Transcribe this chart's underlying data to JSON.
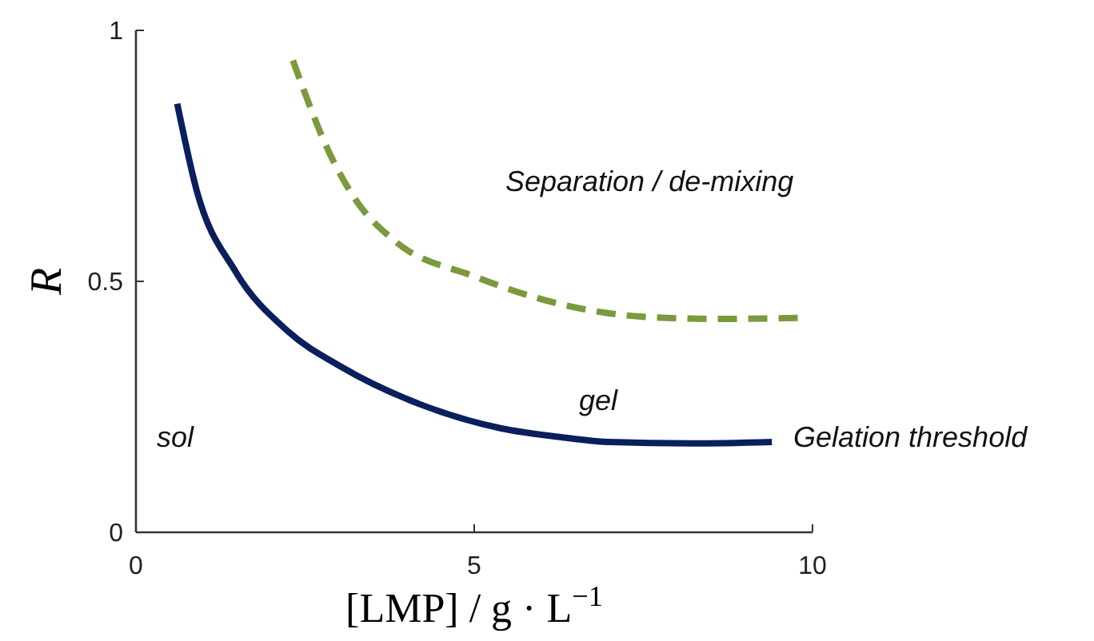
{
  "chart_data": {
    "type": "line",
    "xlabel": "[LMP] / g · L$^{−1}$",
    "ylabel": "R",
    "xlim": [
      0,
      10
    ],
    "ylim": [
      0,
      1
    ],
    "xticks": [
      0,
      5,
      10
    ],
    "yticks": [
      0,
      0.5,
      1
    ],
    "grid": false,
    "series": [
      {
        "color": "#0a1f5c",
        "line_style": "solid",
        "x": [
          0.61,
          0.9,
          1.47,
          2.25,
          3.03,
          4.2,
          5.4,
          6.26,
          6.97,
          8.2,
          9.4
        ],
        "values": [
          0.854,
          0.68,
          0.52,
          0.4,
          0.33,
          0.255,
          0.207,
          0.19,
          0.18,
          0.177,
          0.18
        ]
      },
      {
        "color": "#7a9a3e",
        "line_style": "dashed",
        "x": [
          2.32,
          2.88,
          3.26,
          3.83,
          5.0,
          6.26,
          7.45,
          8.6,
          9.8
        ],
        "values": [
          0.94,
          0.75,
          0.66,
          0.58,
          0.51,
          0.455,
          0.43,
          0.425,
          0.427
        ]
      }
    ],
    "annotations": [
      "Separation / de-mixing",
      "gel",
      "sol",
      "Gelation threshold"
    ]
  }
}
